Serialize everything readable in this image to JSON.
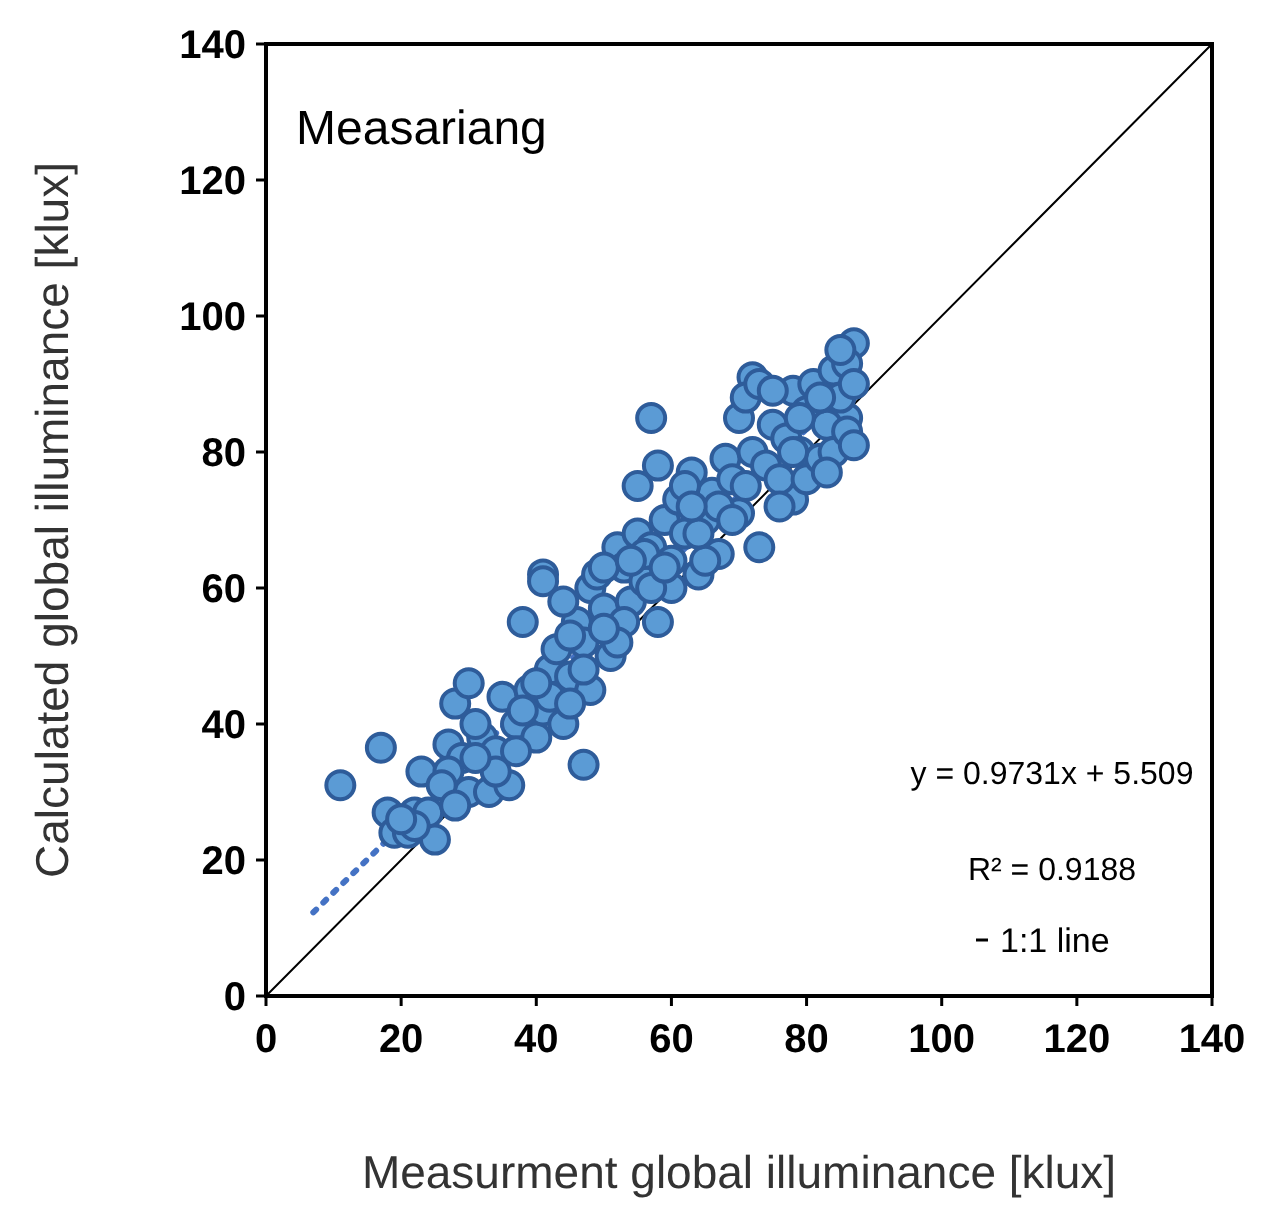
{
  "chart_data": {
    "type": "scatter",
    "title": "Measariang",
    "xlabel": "Measurment global illuminance [klux]",
    "ylabel": "Calculated global illuminance [klux]",
    "xlim": [
      0,
      140
    ],
    "ylim": [
      0,
      140
    ],
    "xticks": [
      0,
      20,
      40,
      60,
      80,
      100,
      120,
      140
    ],
    "yticks": [
      0,
      20,
      40,
      60,
      80,
      100,
      120,
      140
    ],
    "grid": false,
    "legend": "bottom right",
    "annotations": [
      "y = 0.9731x + 5.509",
      "R² = 0.9188"
    ],
    "series": [
      {
        "color": "#5b9bd5",
        "marker": "circle",
        "x": [
          11,
          17,
          47,
          41,
          41,
          57,
          72,
          87,
          86,
          78,
          18,
          19,
          21,
          22,
          24,
          25,
          23,
          27,
          28,
          30,
          29,
          30,
          33,
          32,
          35,
          36,
          38,
          37,
          39,
          40,
          41,
          42,
          43,
          44,
          45,
          46,
          47,
          48,
          48,
          49,
          50,
          51,
          52,
          53,
          54,
          55,
          55,
          56,
          57,
          58,
          58,
          59,
          60,
          61,
          62,
          63,
          64,
          65,
          66,
          67,
          68,
          69,
          70,
          70,
          71,
          72,
          73,
          73,
          74,
          75,
          76,
          77,
          78,
          79,
          80,
          80,
          81,
          82,
          83,
          84,
          84,
          85,
          86,
          86,
          87,
          85,
          62,
          67,
          76,
          60,
          56,
          50,
          45,
          42,
          38,
          34,
          31,
          27,
          26,
          34,
          44,
          53,
          65,
          69,
          79,
          82,
          75,
          64,
          57,
          52,
          47,
          40,
          37,
          31,
          28,
          22,
          20,
          45,
          50,
          54,
          59,
          63,
          71,
          78,
          83,
          87
        ],
        "values": [
          31,
          36.5,
          34,
          62,
          61,
          85,
          91,
          96,
          85,
          73,
          27,
          24,
          24,
          27,
          27,
          23,
          33,
          37,
          43,
          46,
          35,
          30,
          30,
          38,
          44,
          31,
          55,
          40,
          45,
          38,
          42,
          48,
          51,
          40,
          47,
          55,
          52,
          60,
          45,
          62,
          57,
          50,
          66,
          63,
          58,
          75,
          68,
          61,
          66,
          78,
          55,
          70,
          64,
          73,
          68,
          77,
          62,
          70,
          74,
          65,
          79,
          76,
          85,
          71,
          88,
          80,
          66,
          90,
          78,
          84,
          76,
          82,
          89,
          80,
          86,
          76,
          90,
          79,
          84,
          92,
          80,
          88,
          93,
          83,
          81,
          95,
          75,
          72,
          72,
          60,
          65,
          63,
          53,
          44,
          42,
          36,
          40,
          33,
          31,
          33,
          58,
          55,
          64,
          70,
          85,
          88,
          89,
          68,
          60,
          52,
          48,
          46,
          36,
          35,
          28,
          25,
          26,
          43,
          54,
          64,
          63,
          72,
          75,
          80,
          77,
          90
        ]
      },
      {
        "type": "line",
        "color": "#4472c4",
        "line_style": "dotted",
        "marker": "none",
        "x": [
          7,
          87
        ],
        "values": [
          12.3,
          90.2
        ]
      },
      {
        "type": "line",
        "name": "1:1 line",
        "color": "#000000",
        "line_style": "solid",
        "marker": "none",
        "x": [
          0,
          140
        ],
        "values": [
          0,
          140
        ]
      }
    ]
  }
}
